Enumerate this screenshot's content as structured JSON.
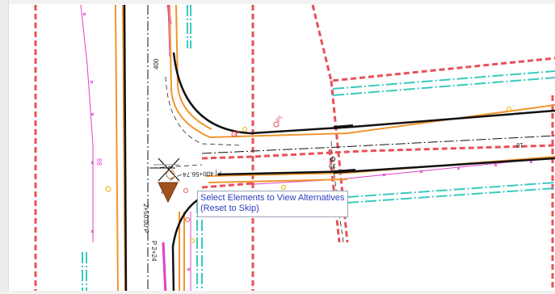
{
  "tooltip": {
    "line1": "Select Elements to View Alternatives",
    "line2": "(Reset to Skip)"
  },
  "drawing_labels": {
    "station_vertical": "400",
    "station_main": "P| 400+56.74",
    "tick_18": "18",
    "tick_19": "19",
    "pi_upper": "PI",
    "pi_lower": "PI",
    "vertical_left": "2+50.00 P",
    "vertical_left_small": "88",
    "vertical_bottom": "P 2+24"
  },
  "colors": {
    "cad_background": "#ffffff",
    "right_of_way": "#e8505a",
    "edge_of_pavement": "#111111",
    "curb_orange": "#f0952c",
    "utility_cyan": "#3bc9be",
    "magenta_line": "#e040c8",
    "centerline": "#111111",
    "cursor_marker": "#a0521e",
    "tooltip_text": "#2a3fbf"
  }
}
